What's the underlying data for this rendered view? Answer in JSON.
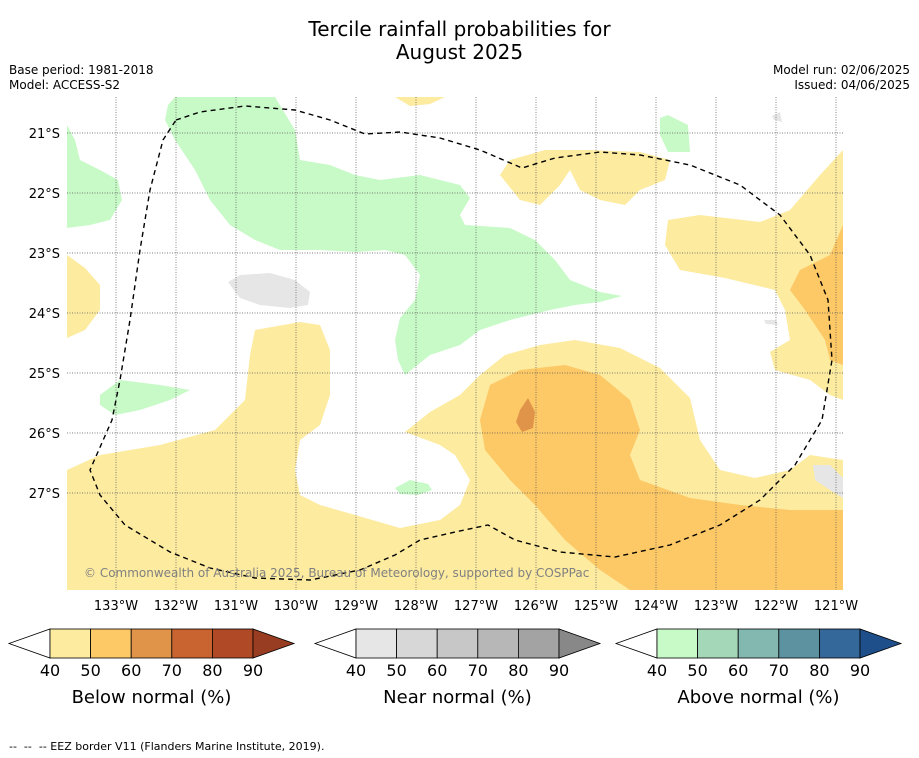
{
  "title_line1": "Tercile rainfall probabilities for",
  "title_line2": "August 2025",
  "base_period": "Base period: 1981-2018",
  "model": "Model: ACCESS-S2",
  "model_run": "Model run: 02/06/2025",
  "issued": "Issued: 04/06/2025",
  "copyright": "© Commonwealth of Australia 2025, Bureau of Meteorology, supported by COSPPac",
  "lon_labels": [
    "133°W",
    "132°W",
    "131°W",
    "130°W",
    "129°W",
    "128°W",
    "127°W",
    "126°W",
    "125°W",
    "124°W",
    "123°W",
    "122°W",
    "121°W"
  ],
  "lat_labels": [
    "21°S",
    "22°S",
    "23°S",
    "24°S",
    "25°S",
    "26°S",
    "27°S"
  ],
  "legends": [
    {
      "label": "Below normal (%)",
      "ticks": [
        "40",
        "50",
        "60",
        "70",
        "80",
        "90"
      ],
      "colors": [
        "#fdeba0",
        "#fdc866",
        "#e0944a",
        "#c9632f",
        "#b04a26",
        "#983d22"
      ]
    },
    {
      "label": "Near normal (%)",
      "ticks": [
        "40",
        "50",
        "60",
        "70",
        "80",
        "90"
      ],
      "colors": [
        "#e6e6e6",
        "#d7d7d7",
        "#c7c7c7",
        "#b7b7b7",
        "#a3a3a3",
        "#888888"
      ]
    },
    {
      "label": "Above normal (%)",
      "ticks": [
        "40",
        "50",
        "60",
        "70",
        "80",
        "90"
      ],
      "colors": [
        "#c8fac8",
        "#a3d7b8",
        "#82b8b0",
        "#5d92a0",
        "#35689a",
        "#1f4f8a"
      ]
    }
  ],
  "eez_note": "-- EEZ border V11 (Flanders Marine Institute, 2019).",
  "colors": {
    "below_40": "#fdeba0",
    "below_50": "#fdc866",
    "below_60": "#e0944a",
    "above_40": "#c8fac8",
    "near_40": "#e6e6e6"
  }
}
